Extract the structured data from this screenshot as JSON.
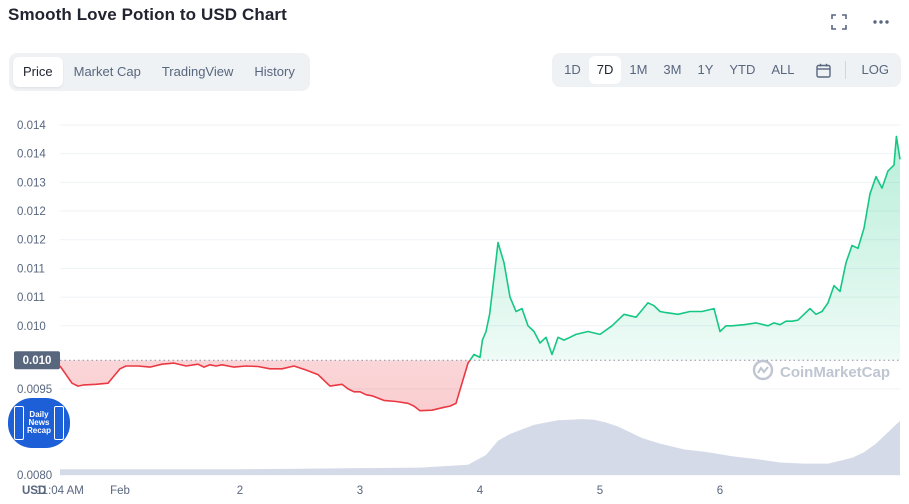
{
  "header": {
    "title": "Smooth Love Potion to USD Chart"
  },
  "icons": {
    "fullscreen": "fullscreen-icon",
    "more": "more-icon",
    "calendar": "calendar-icon",
    "logo": "coinmarketcap-logo-icon"
  },
  "tabs": [
    {
      "label": "Price",
      "active": true
    },
    {
      "label": "Market Cap",
      "active": false
    },
    {
      "label": "TradingView",
      "active": false
    },
    {
      "label": "History",
      "active": false
    }
  ],
  "ranges": [
    {
      "label": "1D",
      "active": false
    },
    {
      "label": "7D",
      "active": true
    },
    {
      "label": "1M",
      "active": false
    },
    {
      "label": "3M",
      "active": false
    },
    {
      "label": "1Y",
      "active": false
    },
    {
      "label": "YTD",
      "active": false
    },
    {
      "label": "ALL",
      "active": false
    }
  ],
  "log_label": "LOG",
  "watermark": "CoinMarketCap",
  "badge": {
    "line1": "Daily",
    "line2": "News",
    "line3": "Recap"
  },
  "colors": {
    "up": "#16c784",
    "down": "#ea3943",
    "volume": "#cfd6e4",
    "text": "#58667e"
  },
  "chart_data": {
    "type": "line",
    "title": "Smooth Love Potion to USD Chart",
    "currency_label": "USD",
    "y_tick_labels": [
      "0.014",
      "0.014",
      "0.013",
      "0.012",
      "0.012",
      "0.011",
      "0.011",
      "0.010",
      "0.0095",
      "0.0080"
    ],
    "y_tick_values": [
      0.0141,
      0.0136,
      0.0131,
      0.0126,
      0.0121,
      0.0116,
      0.0111,
      0.0106,
      0.0095,
      0.008
    ],
    "ylim": [
      0.008,
      0.0145
    ],
    "baseline": {
      "label": "0.010",
      "value": 0.01
    },
    "x_tick_labels": [
      "11:04 AM",
      "Feb",
      "2",
      "3",
      "4",
      "5",
      "6"
    ],
    "x_tick_values": [
      0,
      0.5,
      1.5,
      2.5,
      3.5,
      4.5,
      5.5
    ],
    "xlim": [
      0,
      7
    ],
    "grid": true,
    "series": [
      {
        "x": [
          0.0,
          0.05,
          0.1,
          0.15,
          0.2,
          0.3,
          0.4,
          0.5,
          0.55,
          0.65,
          0.75,
          0.85,
          0.95,
          1.05,
          1.15,
          1.2,
          1.25,
          1.3,
          1.35,
          1.45,
          1.55,
          1.65,
          1.75,
          1.85,
          1.95,
          2.05,
          2.15,
          2.25,
          2.35,
          2.4,
          2.45,
          2.5,
          2.55,
          2.6,
          2.7,
          2.8,
          2.9,
          2.95,
          3.0,
          3.1,
          3.2,
          3.25,
          3.3,
          3.4,
          3.45,
          3.5,
          3.52,
          3.55,
          3.58,
          3.62,
          3.65,
          3.7,
          3.75,
          3.8,
          3.85,
          3.9,
          3.95,
          4.0,
          4.05,
          4.1,
          4.15,
          4.2,
          4.25,
          4.3,
          4.4,
          4.5,
          4.6,
          4.7,
          4.8,
          4.9,
          4.95,
          5.0,
          5.05,
          5.15,
          5.25,
          5.35,
          5.45,
          5.5,
          5.55,
          5.6,
          5.7,
          5.8,
          5.9,
          5.95,
          6.0,
          6.05,
          6.1,
          6.15,
          6.2,
          6.25,
          6.3,
          6.35,
          6.4,
          6.45,
          6.5,
          6.55,
          6.6,
          6.65,
          6.7,
          6.75,
          6.8,
          6.85,
          6.9,
          6.95,
          6.97,
          7.0
        ],
        "values": [
          0.0099,
          0.00975,
          0.0096,
          0.00955,
          0.00957,
          0.00958,
          0.0096,
          0.00985,
          0.0099,
          0.0099,
          0.00988,
          0.00993,
          0.00995,
          0.0099,
          0.00993,
          0.00988,
          0.00992,
          0.0099,
          0.00992,
          0.00988,
          0.0099,
          0.00989,
          0.00985,
          0.00985,
          0.0099,
          0.00983,
          0.00975,
          0.00955,
          0.00958,
          0.0095,
          0.00945,
          0.00945,
          0.0094,
          0.00938,
          0.0093,
          0.00928,
          0.00925,
          0.0092,
          0.00912,
          0.00913,
          0.00918,
          0.0092,
          0.00925,
          0.00995,
          0.0101,
          0.01005,
          0.01035,
          0.0105,
          0.0108,
          0.0115,
          0.01205,
          0.0117,
          0.0111,
          0.01085,
          0.0109,
          0.0106,
          0.0105,
          0.0103,
          0.0104,
          0.0101,
          0.0104,
          0.01035,
          0.0104,
          0.01045,
          0.0105,
          0.01045,
          0.0106,
          0.0108,
          0.01075,
          0.011,
          0.01095,
          0.01085,
          0.01083,
          0.0108,
          0.01085,
          0.01085,
          0.0109,
          0.0105,
          0.0106,
          0.0106,
          0.01062,
          0.01065,
          0.0106,
          0.01065,
          0.01062,
          0.01068,
          0.01068,
          0.0107,
          0.0108,
          0.0109,
          0.0108,
          0.01085,
          0.011,
          0.0113,
          0.0112,
          0.0117,
          0.012,
          0.01195,
          0.0123,
          0.0129,
          0.0132,
          0.013,
          0.0133,
          0.0134,
          0.0139,
          0.0135
        ]
      }
    ],
    "volume": {
      "x": [
        0.0,
        0.5,
        1.0,
        1.5,
        2.0,
        2.5,
        3.0,
        3.4,
        3.55,
        3.65,
        3.75,
        3.85,
        3.95,
        4.05,
        4.15,
        4.25,
        4.35,
        4.45,
        4.55,
        4.65,
        4.75,
        4.85,
        5.0,
        5.2,
        5.4,
        5.6,
        5.8,
        6.0,
        6.2,
        6.4,
        6.5,
        6.6,
        6.7,
        6.8,
        6.9,
        7.0
      ],
      "values": [
        0.1,
        0.1,
        0.1,
        0.1,
        0.11,
        0.12,
        0.13,
        0.18,
        0.35,
        0.6,
        0.72,
        0.8,
        0.88,
        0.92,
        0.96,
        0.97,
        0.98,
        0.97,
        0.92,
        0.85,
        0.75,
        0.65,
        0.55,
        0.45,
        0.4,
        0.33,
        0.28,
        0.22,
        0.2,
        0.2,
        0.25,
        0.3,
        0.4,
        0.55,
        0.75,
        0.95
      ]
    }
  }
}
